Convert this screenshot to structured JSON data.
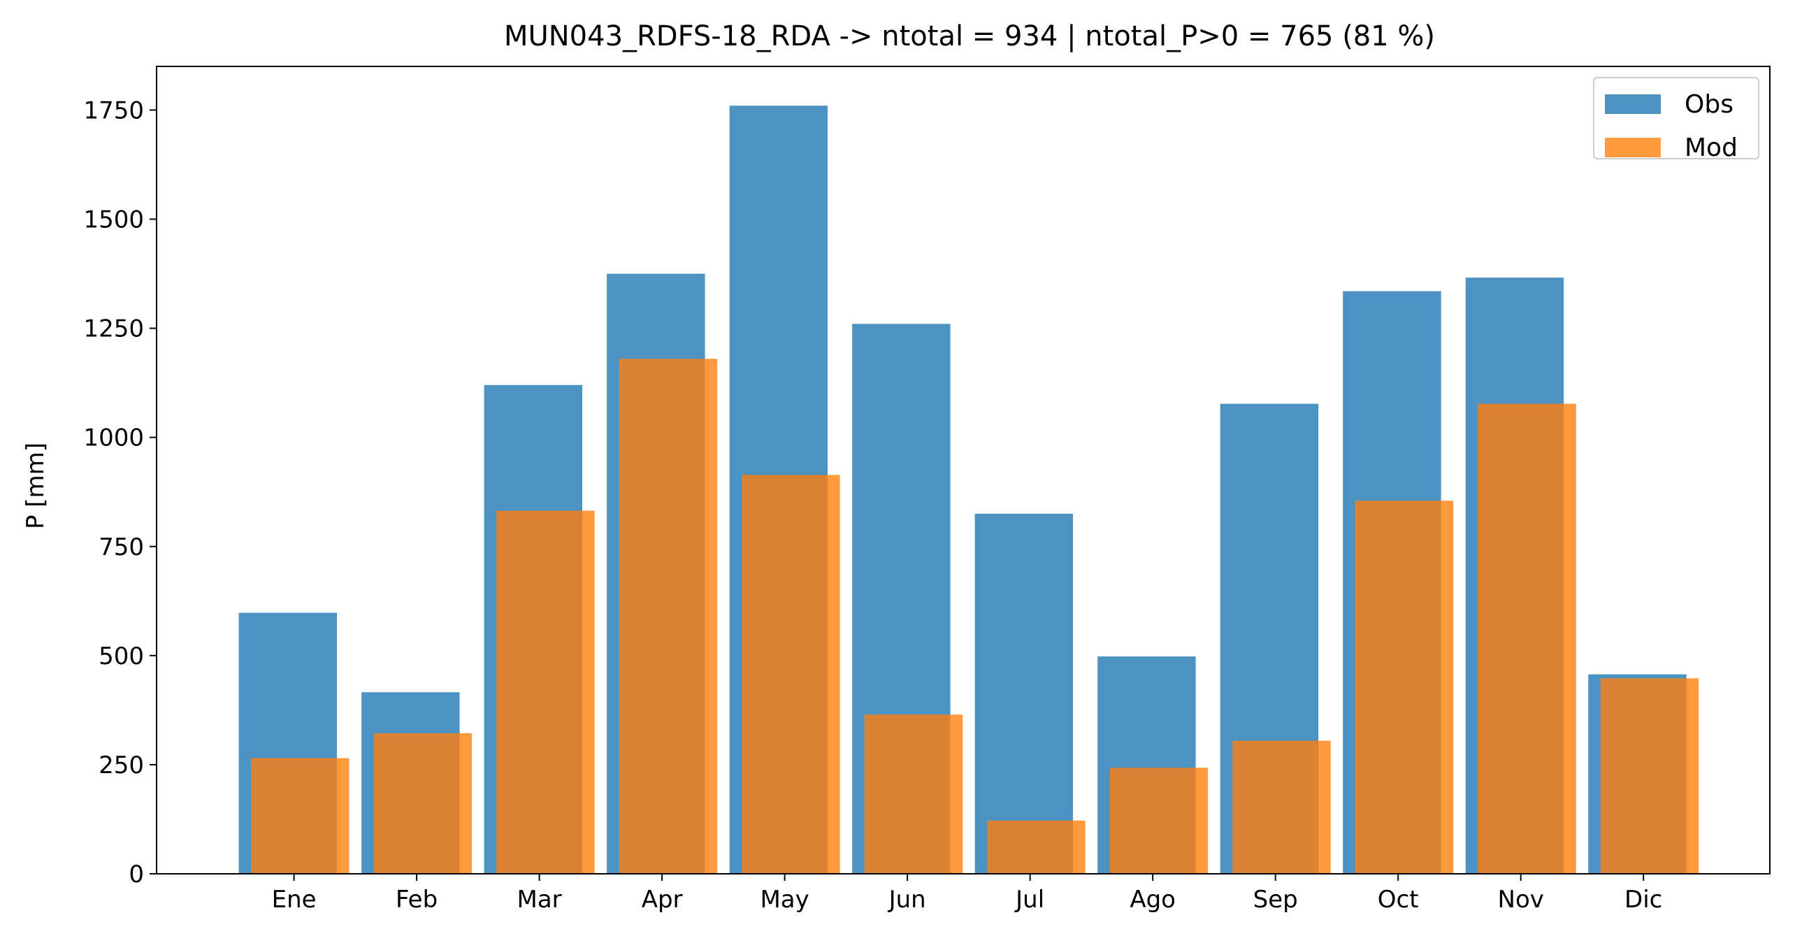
{
  "chart_data": {
    "type": "bar",
    "title": "MUN043_RDFS-18_RDA -> ntotal = 934 | ntotal_P>0 = 765 (81 %)",
    "xlabel": "",
    "ylabel": "P [mm]",
    "ylim": [
      0,
      1850
    ],
    "yticks": [
      0,
      250,
      500,
      750,
      1000,
      1250,
      1500,
      1750
    ],
    "categories": [
      "Ene",
      "Feb",
      "Mar",
      "Apr",
      "May",
      "Jun",
      "Jul",
      "Ago",
      "Sep",
      "Oct",
      "Nov",
      "Dic"
    ],
    "series": [
      {
        "name": "Obs",
        "color": "#1f77b4",
        "alpha": 0.8,
        "values": [
          598,
          416,
          1120,
          1375,
          1760,
          1260,
          825,
          498,
          1077,
          1335,
          1366,
          457
        ]
      },
      {
        "name": "Mod",
        "color": "#ff7f0e",
        "alpha": 0.8,
        "values": [
          265,
          322,
          832,
          1180,
          914,
          365,
          122,
          243,
          305,
          855,
          1077,
          448
        ]
      }
    ],
    "grid": false,
    "legend": "top-right"
  }
}
